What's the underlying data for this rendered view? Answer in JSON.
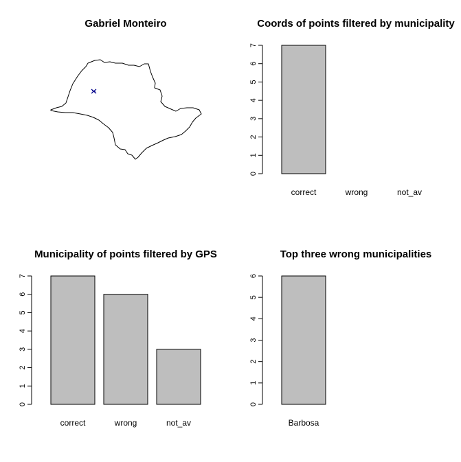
{
  "figure": {
    "map_panel": {
      "title": "Gabriel Monteiro"
    }
  },
  "chart_data": [
    {
      "type": "bar",
      "title": "Coords of points filtered by municipality",
      "categories": [
        "correct",
        "wrong",
        "not_av"
      ],
      "values": [
        7,
        0,
        0
      ],
      "ylim": [
        0,
        7
      ],
      "yticks": [
        "0",
        "1",
        "2",
        "3",
        "4",
        "5",
        "6",
        "7"
      ],
      "xlabel": "",
      "ylabel": "",
      "bar_color": "#bebebe",
      "grid": false
    },
    {
      "type": "bar",
      "title": "Municipality of points filtered by GPS",
      "categories": [
        "correct",
        "wrong",
        "not_av"
      ],
      "values": [
        7,
        6,
        3
      ],
      "ylim": [
        0,
        7
      ],
      "yticks": [
        "0",
        "1",
        "2",
        "3",
        "4",
        "5",
        "6",
        "7"
      ],
      "xlabel": "",
      "ylabel": "",
      "bar_color": "#bebebe",
      "grid": false
    },
    {
      "type": "bar",
      "title": "Top three wrong municipalities",
      "categories": [
        "Barbosa"
      ],
      "values": [
        6
      ],
      "ylim": [
        0,
        6
      ],
      "yticks": [
        "0",
        "1",
        "2",
        "3",
        "4",
        "5",
        "6"
      ],
      "xlabel": "",
      "ylabel": "",
      "bar_color": "#bebebe",
      "grid": false
    }
  ]
}
